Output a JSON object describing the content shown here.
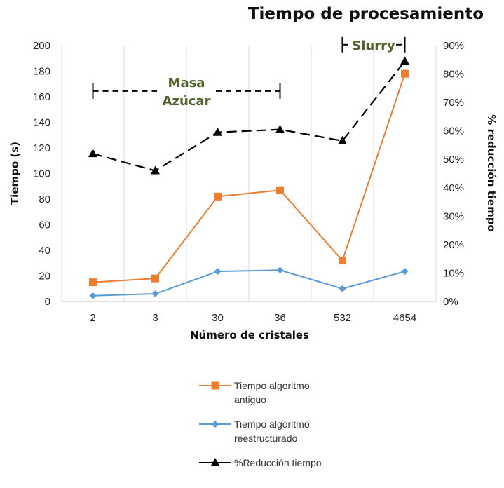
{
  "chart_data": {
    "type": "line",
    "title": "Tiempo de procesamiento",
    "xlabel": "Número de cristales",
    "ylabel": "Tiempo (s)",
    "y2label": "% reducción tiempo",
    "categories": [
      "2",
      "3",
      "30",
      "36",
      "532",
      "4654"
    ],
    "ylim": [
      0,
      200
    ],
    "yticks": [
      "0",
      "20",
      "40",
      "60",
      "80",
      "100",
      "120",
      "140",
      "160",
      "180",
      "200"
    ],
    "y2lim": [
      0,
      0.9
    ],
    "y2ticks": [
      "0%",
      "10%",
      "20%",
      "30%",
      "40%",
      "50%",
      "60%",
      "70%",
      "80%",
      "90%"
    ],
    "grid": "vertical",
    "series": [
      {
        "name": "Tiempo algoritmo antiguo",
        "name_lines": [
          "Tiempo algoritmo",
          "antiguo"
        ],
        "axis": "left",
        "marker": "square",
        "color": "#ed7d31",
        "dash": "solid",
        "values": [
          15,
          18,
          82,
          87,
          32,
          178
        ]
      },
      {
        "name": "Tiempo algoritmo reestructurado",
        "name_lines": [
          "Tiempo algoritmo",
          "reestructurado"
        ],
        "axis": "left",
        "marker": "diamond",
        "color": "#5b9bd5",
        "dash": "solid",
        "values": [
          4.5,
          6,
          23.5,
          24.5,
          10,
          23.5
        ]
      },
      {
        "name": "%Reducción tiempo",
        "name_lines": [
          "%Reducción tiempo"
        ],
        "axis": "right",
        "marker": "triangle",
        "color": "#000000",
        "dash": "dashed",
        "values": [
          0.52,
          0.46,
          0.595,
          0.605,
          0.565,
          0.845
        ]
      }
    ],
    "annotations": [
      {
        "lines": [
          "Masa",
          "Azúcar"
        ],
        "from": "2",
        "to": "36"
      },
      {
        "lines": [
          "Slurry"
        ],
        "from": "532",
        "to": "4654"
      }
    ],
    "legend_position": "bottom"
  }
}
